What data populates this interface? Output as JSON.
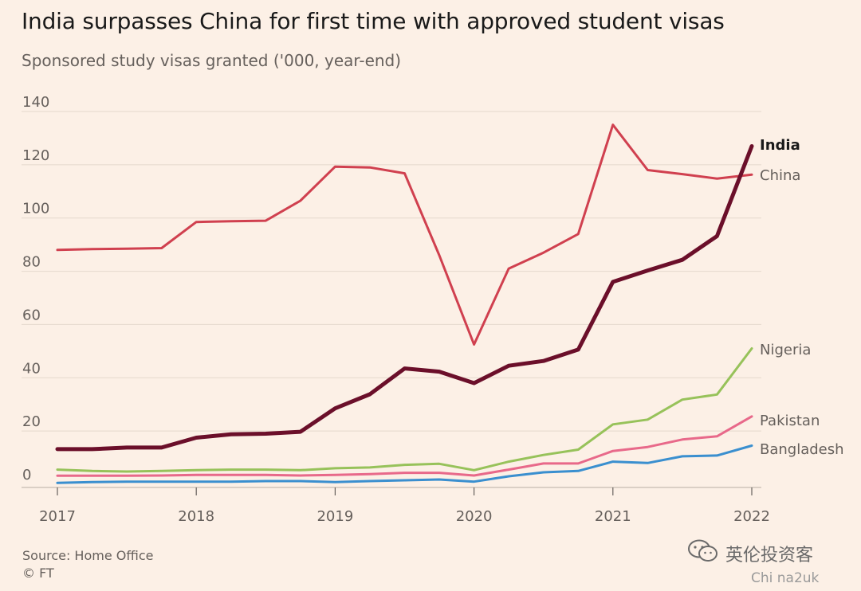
{
  "title": "India surpasses China for first time with approved student visas",
  "subtitle": "Sponsored study visas granted ('000, year-end)",
  "source": "Source: Home Office",
  "copyright": "© FT",
  "watermark": {
    "text": "英伦投资客",
    "sub": "Chi na2uk",
    "icon": "wechat-icon"
  },
  "colors": {
    "India": "#6b0f2a",
    "China": "#d0404f",
    "Nigeria": "#97c25a",
    "Pakistan": "#e8698a",
    "Bangladesh": "#3a8fcf",
    "grid": "#e4d8cc",
    "axis": "#66605c"
  },
  "chart_data": {
    "type": "line",
    "title": "India surpasses China for first time with approved student visas",
    "subtitle": "Sponsored study visas granted ('000, year-end)",
    "xlabel": "",
    "ylabel": "",
    "xlim": [
      2017,
      2022
    ],
    "ylim": [
      0,
      140
    ],
    "yticks": [
      0,
      20,
      40,
      60,
      80,
      100,
      120,
      140
    ],
    "xticks": [
      2017,
      2018,
      2019,
      2020,
      2021,
      2022
    ],
    "grid": true,
    "legend": "labels at line ends (right)",
    "x": [
      2017.0,
      2017.25,
      2017.5,
      2017.75,
      2018.0,
      2018.25,
      2018.5,
      2018.75,
      2019.0,
      2019.25,
      2019.5,
      2019.75,
      2020.0,
      2020.25,
      2020.5,
      2020.75,
      2021.0,
      2021.25,
      2021.5,
      2021.75,
      2022.0
    ],
    "series": [
      {
        "name": "India",
        "values": [
          13.2,
          13.2,
          13.8,
          13.8,
          17.5,
          18.8,
          19.0,
          19.7,
          28.5,
          33.8,
          43.5,
          42.3,
          38.0,
          44.5,
          46.3,
          50.6,
          76.0,
          80.3,
          84.3,
          93.2,
          127.0
        ]
      },
      {
        "name": "China",
        "values": [
          88.0,
          88.3,
          88.5,
          88.7,
          98.5,
          98.8,
          99.0,
          106.5,
          119.3,
          119.0,
          116.8,
          86.0,
          52.5,
          81.0,
          87.0,
          94.0,
          135.0,
          118.0,
          116.5,
          114.8,
          116.3
        ]
      },
      {
        "name": "Nigeria",
        "values": [
          5.5,
          5.0,
          4.8,
          5.0,
          5.3,
          5.5,
          5.5,
          5.3,
          6.0,
          6.3,
          7.3,
          7.7,
          5.3,
          8.5,
          11.0,
          13.0,
          22.5,
          24.3,
          31.8,
          33.7,
          51.0
        ]
      },
      {
        "name": "Pakistan",
        "values": [
          3.2,
          3.2,
          3.2,
          3.3,
          3.5,
          3.5,
          3.5,
          3.3,
          3.5,
          3.8,
          4.3,
          4.3,
          3.3,
          5.5,
          7.8,
          7.8,
          12.5,
          14.0,
          16.8,
          18.0,
          25.5
        ]
      },
      {
        "name": "Bangladesh",
        "values": [
          0.5,
          0.8,
          1.0,
          1.0,
          1.0,
          1.0,
          1.2,
          1.2,
          0.8,
          1.2,
          1.5,
          1.8,
          1.0,
          3.0,
          4.5,
          5.0,
          8.5,
          8.0,
          10.5,
          10.8,
          14.5
        ]
      }
    ]
  }
}
